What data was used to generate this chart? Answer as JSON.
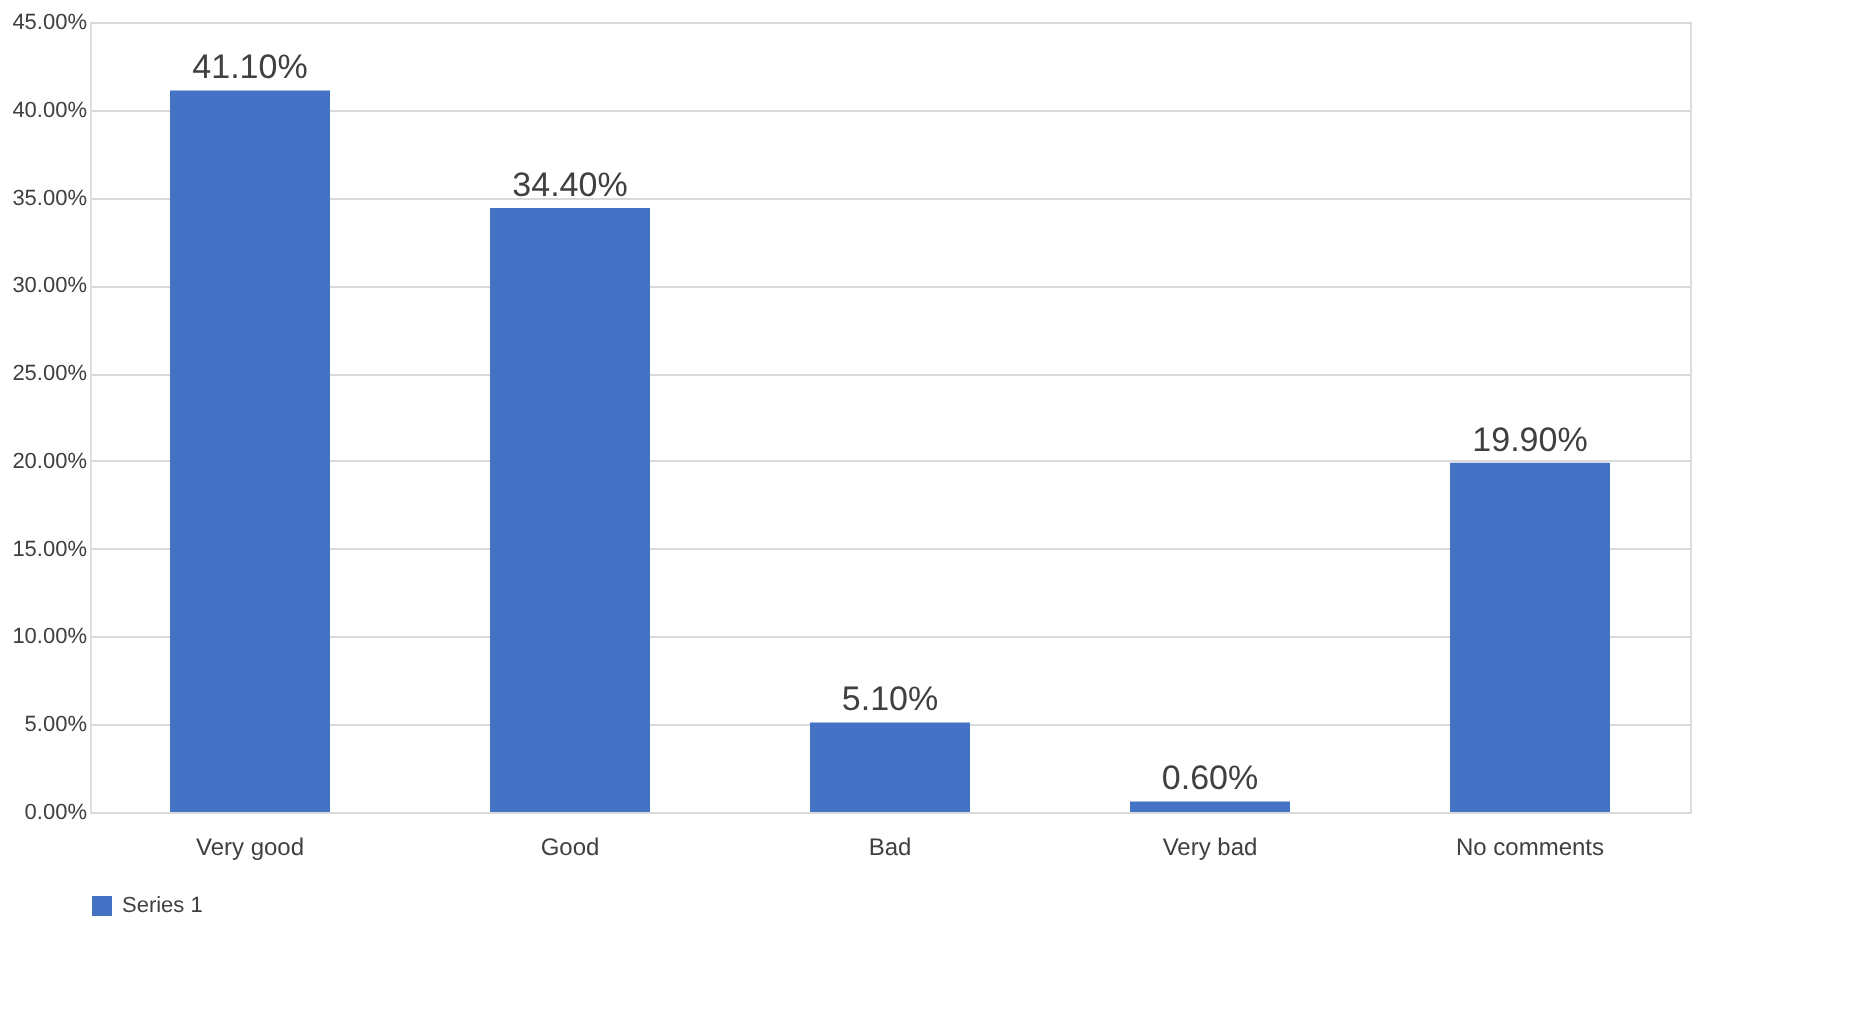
{
  "chart_data": {
    "type": "bar",
    "categories": [
      "Very good",
      "Good",
      "Bad",
      "Very bad",
      "No comments"
    ],
    "series": [
      {
        "name": "Series 1",
        "color": "#4472c4",
        "values": [
          41.1,
          34.4,
          5.1,
          0.6,
          19.9
        ],
        "value_labels": [
          "41.10%",
          "34.40%",
          "5.10%",
          "0.60%",
          "19.90%"
        ]
      }
    ],
    "ylim": [
      0,
      45
    ],
    "yticks": [
      {
        "value": 0,
        "label": "0.00%"
      },
      {
        "value": 5,
        "label": "5.00%"
      },
      {
        "value": 10,
        "label": "10.00%"
      },
      {
        "value": 15,
        "label": "15.00%"
      },
      {
        "value": 20,
        "label": "20.00%"
      },
      {
        "value": 25,
        "label": "25.00%"
      },
      {
        "value": 30,
        "label": "30.00%"
      },
      {
        "value": 35,
        "label": "35.00%"
      },
      {
        "value": 40,
        "label": "40.00%"
      },
      {
        "value": 45,
        "label": "45.00%"
      }
    ],
    "grid": "y",
    "legend": "bottom"
  }
}
